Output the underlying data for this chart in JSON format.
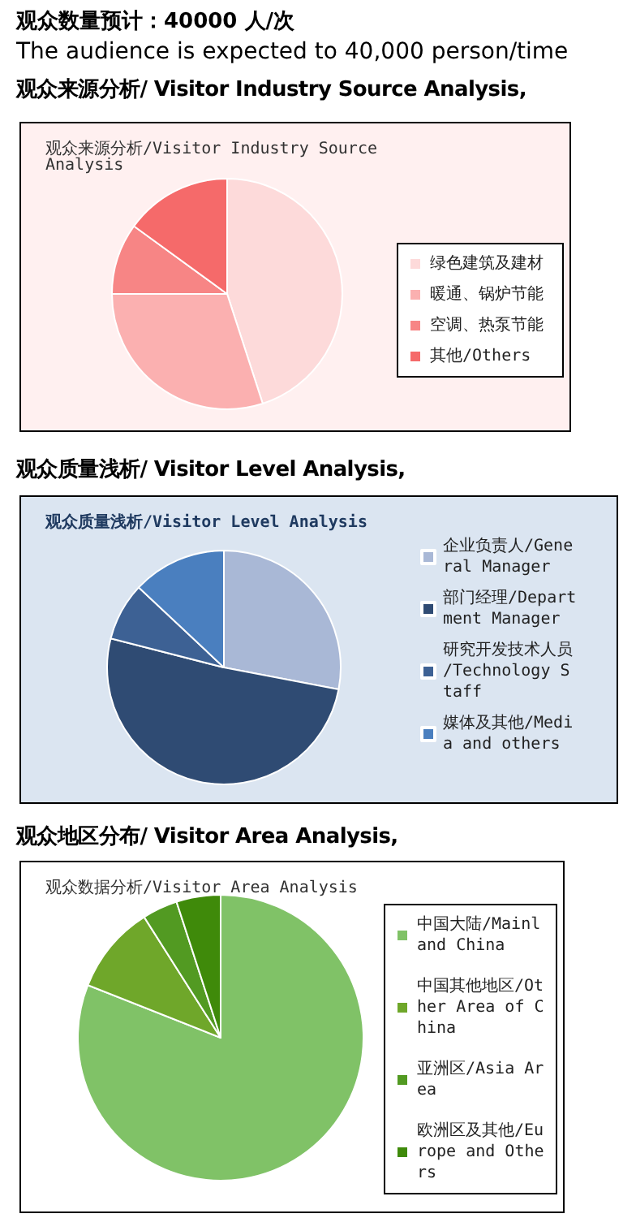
{
  "chart_data": [
    {
      "type": "pie",
      "title": "观众来源分析/ Visitor Industry Source Analysis,",
      "subtitle": "观众来源分析/Visitor Industry Source Analysis",
      "annotations": [
        "观众数量预计：40000 人/次",
        "The audience is expected to 40,000 person/time"
      ],
      "categories": [
        "绿色建筑及建材",
        "暖通、锅炉节能",
        "空调、热泵节能",
        "其他/Others"
      ],
      "values": [
        45,
        30,
        10,
        15
      ],
      "colors": [
        "#fddada",
        "#fbb0b0",
        "#f78585",
        "#f56a6a"
      ],
      "legend": "right"
    },
    {
      "type": "pie",
      "title": "观众质量浅析/ Visitor Level Analysis,",
      "subtitle": "观众质量浅析/Visitor Level Analysis",
      "categories": [
        "企业负责人/General Manager",
        "部门经理/Department Manager",
        "研究开发技术人员/Technology Staff",
        "媒体及其他/Media and others"
      ],
      "values": [
        28,
        51,
        8,
        13
      ],
      "colors": [
        "#a9b8d6",
        "#2f4b73",
        "#3d6194",
        "#4a7fbf"
      ],
      "legend": "right"
    },
    {
      "type": "pie",
      "title": "观众地区分布/ Visitor Area Analysis,",
      "subtitle": "观众数据分析/Visitor Area Analysis",
      "categories": [
        "中国大陆/Mainland China",
        "中国其他地区/Other Area of China",
        "亚洲区/Asia Area",
        "欧洲区及其他/Europe and Others"
      ],
      "values": [
        81,
        10,
        4,
        5
      ],
      "colors": [
        "#80c267",
        "#6fa72a",
        "#529a22",
        "#3f8a0a"
      ],
      "legend": "right"
    }
  ]
}
